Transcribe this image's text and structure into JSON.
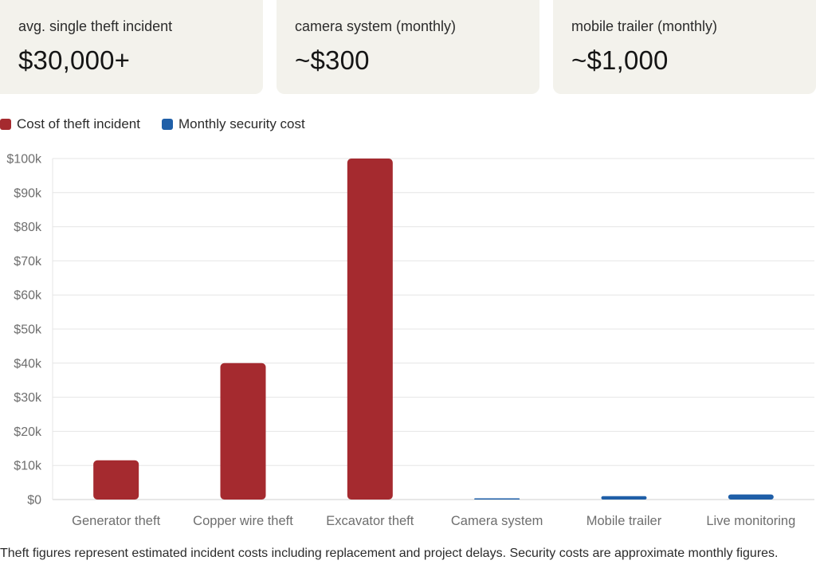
{
  "cards": [
    {
      "label": "avg. single theft incident",
      "value": "$30,000+"
    },
    {
      "label": "camera system (monthly)",
      "value": "~$300"
    },
    {
      "label": "mobile trailer (monthly)",
      "value": "~$1,000"
    }
  ],
  "colors": {
    "theft": "#a52a2f",
    "security": "#1f5fa8",
    "grid": "#e6e6e6",
    "axis_text": "#6e6e6e"
  },
  "chart_data": {
    "type": "bar",
    "title": "",
    "xlabel": "",
    "ylabel": "",
    "categories": [
      "Generator theft",
      "Copper wire theft",
      "Excavator theft",
      "Camera system",
      "Mobile trailer",
      "Live monitoring"
    ],
    "series": [
      {
        "name": "Cost of theft incident",
        "color": "#a52a2f",
        "values": [
          11500,
          40000,
          100000,
          null,
          null,
          null
        ]
      },
      {
        "name": "Monthly security cost",
        "color": "#1f5fa8",
        "values": [
          null,
          null,
          null,
          300,
          1000,
          1500
        ]
      }
    ],
    "yticks": [
      "$0",
      "$10k",
      "$20k",
      "$30k",
      "$40k",
      "$50k",
      "$60k",
      "$70k",
      "$80k",
      "$90k",
      "$100k"
    ],
    "ylim": [
      0,
      100000
    ],
    "grid": true,
    "legend_position": "top-left"
  },
  "note": "Theft figures represent estimated incident costs including replacement and project delays. Security costs are approximate monthly figures."
}
